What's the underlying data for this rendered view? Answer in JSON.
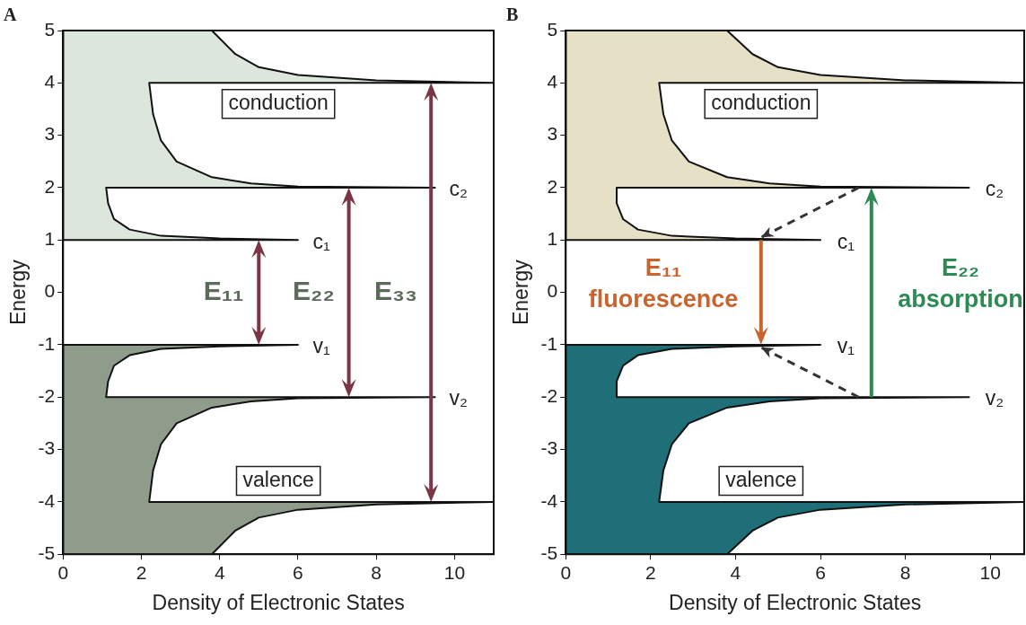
{
  "chart_data": [
    {
      "type": "area",
      "title": "A",
      "xlabel": "Density of Electronic States",
      "ylabel": "Energy",
      "xlim": [
        0,
        11
      ],
      "ylim": [
        -5,
        5
      ],
      "xticks": [
        0,
        2,
        4,
        6,
        8,
        10
      ],
      "yticks": [
        -5,
        -4,
        -3,
        -2,
        -1,
        0,
        1,
        2,
        3,
        4,
        5
      ],
      "grid": false,
      "marker": "none",
      "series": [
        {
          "color": "#dce6dc",
          "x": [
            0,
            6,
            4,
            2.5,
            1.7,
            1.3,
            1.15,
            1.1,
            9.5,
            6,
            4.8,
            3.8,
            2.9,
            2.5,
            2.3,
            2.2,
            11,
            8,
            6,
            5,
            4.4,
            4,
            3.8,
            0,
            0
          ],
          "values": [
            1,
            1,
            1.03,
            1.08,
            1.2,
            1.4,
            1.7,
            2,
            2,
            2.02,
            2.08,
            2.2,
            2.5,
            2.9,
            3.4,
            4,
            4,
            4.05,
            4.15,
            4.3,
            4.55,
            4.85,
            5,
            5,
            1
          ]
        },
        {
          "color": "#8f9c8b",
          "x": [
            0,
            6,
            4,
            2.5,
            1.7,
            1.3,
            1.15,
            1.1,
            9.5,
            6,
            4.8,
            3.8,
            2.9,
            2.5,
            2.3,
            2.2,
            11,
            8,
            6,
            5,
            4.4,
            4,
            3.8,
            0,
            0
          ],
          "values": [
            -1,
            -1,
            -1.03,
            -1.08,
            -1.2,
            -1.4,
            -1.7,
            -2,
            -2,
            -2.02,
            -2.08,
            -2.2,
            -2.5,
            -2.9,
            -3.4,
            -4,
            -4,
            -4.05,
            -4.15,
            -4.3,
            -4.55,
            -4.85,
            -5,
            -5,
            -1
          ]
        }
      ],
      "annotations": [
        "conduction",
        "valence",
        "c₁",
        "v₁",
        "c₂",
        "v₂",
        "E₁₁",
        "E₂₂",
        "E₃₃"
      ]
    },
    {
      "type": "area",
      "title": "B",
      "xlabel": "Density of Electronic States",
      "ylabel": "Energy",
      "xlim": [
        0,
        10.8
      ],
      "ylim": [
        -5,
        5
      ],
      "xticks": [
        0,
        2,
        4,
        6,
        8,
        10
      ],
      "yticks": [
        -5,
        -4,
        -3,
        -2,
        -1,
        0,
        1,
        2,
        3,
        4,
        5
      ],
      "grid": false,
      "marker": "none",
      "series": [
        {
          "color": "#e6e0c6",
          "x": [
            0,
            6,
            4,
            2.5,
            1.7,
            1.35,
            1.2,
            1.2,
            9.5,
            6,
            4.8,
            3.8,
            2.9,
            2.5,
            2.3,
            2.2,
            10.8,
            8,
            6,
            5,
            4.4,
            4,
            3.8,
            0,
            0
          ],
          "values": [
            1,
            1,
            1.03,
            1.08,
            1.2,
            1.4,
            1.7,
            2,
            2,
            2.02,
            2.08,
            2.2,
            2.5,
            2.9,
            3.4,
            4,
            4,
            4.05,
            4.15,
            4.3,
            4.55,
            4.85,
            5,
            5,
            1
          ]
        },
        {
          "color": "#1f6f78",
          "x": [
            0,
            6,
            4,
            2.5,
            1.7,
            1.35,
            1.2,
            1.2,
            9.5,
            6,
            4.8,
            3.8,
            2.9,
            2.5,
            2.3,
            2.2,
            10.8,
            8,
            6,
            5,
            4.4,
            4,
            3.8,
            0,
            0
          ],
          "values": [
            -1,
            -1,
            -1.03,
            -1.08,
            -1.2,
            -1.4,
            -1.7,
            -2,
            -2,
            -2.02,
            -2.08,
            -2.2,
            -2.5,
            -2.9,
            -3.4,
            -4,
            -4,
            -4.05,
            -4.15,
            -4.3,
            -4.55,
            -4.85,
            -5,
            -5,
            -1
          ]
        }
      ],
      "annotations": [
        "conduction",
        "valence",
        "c₁",
        "v₁",
        "c₂",
        "v₂",
        "E₁₁",
        "fluorescence",
        "E₂₂",
        "absorption"
      ]
    }
  ]
}
